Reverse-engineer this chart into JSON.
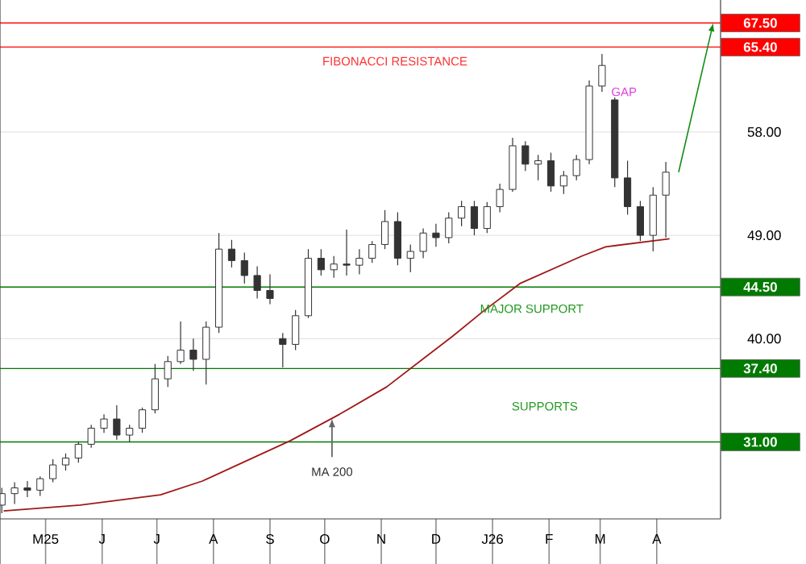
{
  "chart_data": {
    "type": "candlestick",
    "x": [
      "2025-04-07",
      "2025-04-14",
      "2025-04-21",
      "2025-04-28",
      "2025-05-05",
      "2025-05-12",
      "2025-05-19",
      "2025-05-26",
      "2025-06-02",
      "2025-06-09",
      "2025-06-16",
      "2025-06-23",
      "2025-06-30",
      "2025-07-07",
      "2025-07-14",
      "2025-07-21",
      "2025-07-28",
      "2025-08-04",
      "2025-08-11",
      "2025-08-18",
      "2025-08-25",
      "2025-09-01",
      "2025-09-08",
      "2025-09-15",
      "2025-09-22",
      "2025-09-29",
      "2025-10-06",
      "2025-10-13",
      "2025-10-20",
      "2025-10-27",
      "2025-11-03",
      "2025-11-10",
      "2025-11-17",
      "2025-11-24",
      "2025-12-01",
      "2025-12-08",
      "2025-12-15",
      "2025-12-22",
      "2025-12-29",
      "2026-01-05",
      "2026-01-12",
      "2026-01-19",
      "2026-01-26",
      "2026-02-02",
      "2026-02-09",
      "2026-02-16",
      "2026-02-23",
      "2026-03-02",
      "2026-03-09",
      "2026-03-16",
      "2026-03-23",
      "2026-03-30",
      "2026-04-06"
    ],
    "ohlc": [
      [
        25.5,
        27,
        24.8,
        26.5
      ],
      [
        26.5,
        27.5,
        25.6,
        27
      ],
      [
        27,
        27.6,
        26.2,
        26.8
      ],
      [
        26.8,
        28,
        26.3,
        27.8
      ],
      [
        27.8,
        29.5,
        27.5,
        29
      ],
      [
        29,
        30,
        28.5,
        29.6
      ],
      [
        29.6,
        31,
        29.2,
        30.8
      ],
      [
        30.8,
        32.5,
        30.5,
        32.2
      ],
      [
        32.2,
        33.4,
        31.8,
        33
      ],
      [
        33,
        34.2,
        31.2,
        31.6
      ],
      [
        31.6,
        32.5,
        31,
        32.2
      ],
      [
        32.2,
        34,
        31.8,
        33.8
      ],
      [
        33.8,
        37.8,
        33.5,
        36.5
      ],
      [
        36.5,
        38.5,
        35.8,
        38
      ],
      [
        38,
        41.5,
        37.8,
        39
      ],
      [
        39,
        40,
        37.2,
        38.2
      ],
      [
        38.2,
        41.5,
        36,
        41
      ],
      [
        41,
        49.2,
        40.5,
        47.8
      ],
      [
        47.8,
        48.6,
        46.2,
        46.8
      ],
      [
        46.8,
        47.5,
        44.8,
        45.5
      ],
      [
        45.5,
        46.3,
        43.5,
        44.2
      ],
      [
        44.2,
        45.6,
        43,
        43.5
      ],
      [
        40,
        40.5,
        37.5,
        39.5
      ],
      [
        39.5,
        42.5,
        39,
        42
      ],
      [
        42,
        47.8,
        41.8,
        47
      ],
      [
        47,
        47.8,
        45.5,
        46
      ],
      [
        46,
        47.2,
        45.3,
        46.5
      ],
      [
        46.5,
        49.5,
        45.5,
        46.4
      ],
      [
        46.4,
        47.8,
        45.6,
        47
      ],
      [
        47,
        48.5,
        46.6,
        48.2
      ],
      [
        48.2,
        51.2,
        47.8,
        50.2
      ],
      [
        50.2,
        51,
        46.4,
        47
      ],
      [
        47,
        48.2,
        45.8,
        47.6
      ],
      [
        47.6,
        49.6,
        47,
        49.2
      ],
      [
        49.2,
        50,
        48,
        48.8
      ],
      [
        48.8,
        51,
        48.3,
        50.5
      ],
      [
        50.5,
        52,
        49.8,
        51.5
      ],
      [
        51.5,
        52,
        49,
        49.6
      ],
      [
        49.6,
        51.9,
        49.2,
        51.5
      ],
      [
        51.5,
        53.5,
        51,
        53
      ],
      [
        53,
        57.5,
        52.8,
        56.8
      ],
      [
        56.8,
        57.2,
        54.6,
        55.2
      ],
      [
        55.2,
        56,
        53.8,
        55.5
      ],
      [
        55.5,
        56.2,
        52.8,
        53.3
      ],
      [
        53.3,
        54.6,
        52.6,
        54.2
      ],
      [
        54.2,
        56,
        53.8,
        55.6
      ],
      [
        55.6,
        62.5,
        55.2,
        62
      ],
      [
        62,
        64.8,
        61.5,
        63.8
      ],
      [
        60.8,
        61,
        53.2,
        54
      ],
      [
        54,
        55.5,
        50.8,
        51.5
      ],
      [
        51.5,
        52,
        48.5,
        49
      ],
      [
        49,
        53.2,
        47.6,
        52.5
      ],
      [
        52.5,
        55.4,
        48.8,
        54.5
      ]
    ],
    "color": "#333333",
    "series": [
      {
        "type": "line",
        "color": "#a01818",
        "x": [
          "2025-04-08",
          "2025-05-20",
          "2025-07-03",
          "2025-07-26",
          "2025-08-17",
          "2025-09-12",
          "2025-10-09",
          "2025-11-04",
          "2025-12-10",
          "2025-12-27",
          "2026-01-16",
          "2026-02-19",
          "2026-03-04",
          "2026-04-08"
        ],
        "values": [
          25,
          25.5,
          26.4,
          27.6,
          29.2,
          31.1,
          33.4,
          35.8,
          40.2,
          42.4,
          44.8,
          47.2,
          48,
          48.7
        ]
      }
    ],
    "xlim": [
      "2025-04-06",
      "2026-05-06"
    ],
    "xticks": [
      {
        "value": "2025-05-01",
        "label": "M25"
      },
      {
        "value": "2025-06-01",
        "label": "J"
      },
      {
        "value": "2025-07-01",
        "label": "J"
      },
      {
        "value": "2025-08-01",
        "label": "A"
      },
      {
        "value": "2025-09-01",
        "label": "S"
      },
      {
        "value": "2025-10-01",
        "label": "O"
      },
      {
        "value": "2025-11-01",
        "label": "N"
      },
      {
        "value": "2025-12-01",
        "label": "D"
      },
      {
        "value": "2026-01-01",
        "label": "J26"
      },
      {
        "value": "2026-02-01",
        "label": "F"
      },
      {
        "value": "2026-03-01",
        "label": "M"
      },
      {
        "value": "2026-04-01",
        "label": "A"
      }
    ],
    "ylim": [
      24.3,
      69.5
    ],
    "yticks": [
      {
        "value": 40,
        "label": "40.00"
      },
      {
        "value": 49,
        "label": "49.00"
      },
      {
        "value": 58,
        "label": "58.00"
      }
    ],
    "grid": "y",
    "ref_lines": [
      {
        "axis": "y",
        "value": 67.5,
        "label": "67.50",
        "color": "#ff0000"
      },
      {
        "axis": "y",
        "value": 65.4,
        "label": "65.40",
        "color": "#ff0000"
      },
      {
        "axis": "y",
        "value": 44.5,
        "label": "44.50",
        "color": "#007a00"
      },
      {
        "axis": "y",
        "value": 37.4,
        "label": "37.40",
        "color": "#007a00"
      },
      {
        "axis": "y",
        "value": 31,
        "label": "31.00",
        "color": "#007a00"
      }
    ],
    "annotations": [
      "FIBONACCI RESISTANCE",
      "GAP",
      "MAJOR SUPPORT",
      "SUPPORTS",
      {
        "text": "MA 200",
        "x": "2025-10-05",
        "y": 33.06
      }
    ]
  }
}
